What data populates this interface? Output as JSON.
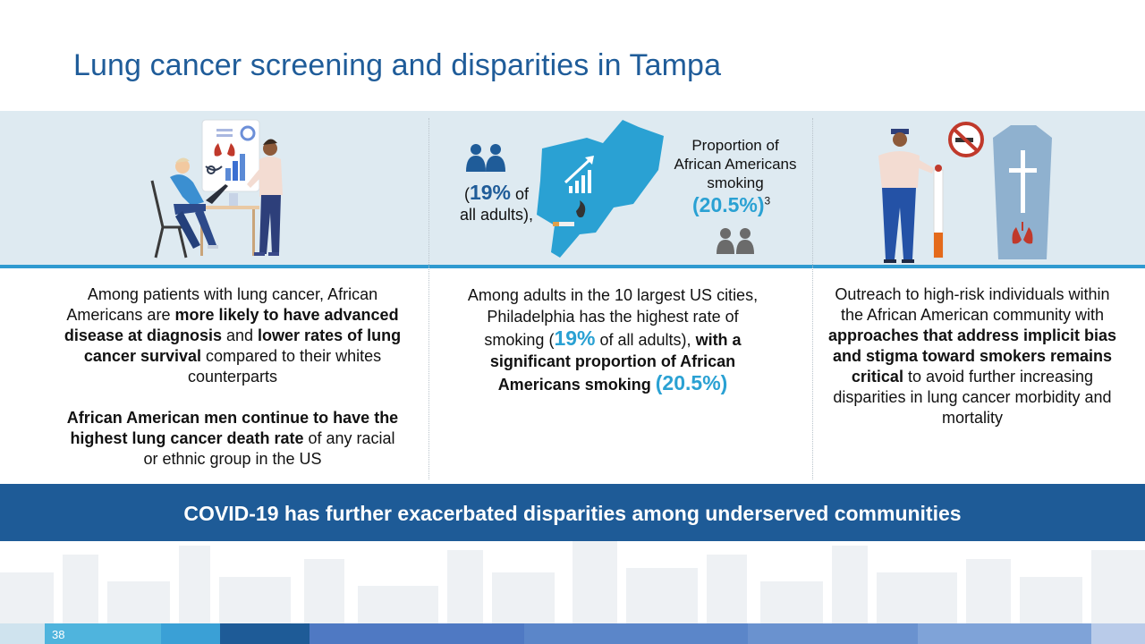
{
  "slide": {
    "title": "Lung cancer screening and disparities in Tampa",
    "page_number": "38"
  },
  "colors": {
    "title_blue": "#1f5c99",
    "accent_cyan": "#2aa1d3",
    "band_bg": "#deeaf1",
    "banner_bg": "#1e5b97"
  },
  "panel1": {
    "para1": {
      "t1": "Among patients with lung cancer, African Americans are ",
      "b1": "more likely to have advanced disease at diagnosis",
      "t2": " and ",
      "b2": "lower rates of lung cancer survival",
      "t3": " compared to their whites counterparts"
    },
    "para2": {
      "b1": "African American men continue to have the highest lung cancer death rate",
      "t1": " of any racial or ethnic group in the US"
    }
  },
  "panel2": {
    "graphic": {
      "open_paren": "(",
      "pct_adults": "19%",
      "of": " of",
      "all_adults": "all adults),",
      "prop_label": "Proportion of African Americans smoking",
      "pct_aa": "(20.5%)",
      "footnote": "3"
    },
    "text": {
      "t1": "Among adults in the 10 largest US cities, Philadelphia has the highest rate of smoking (",
      "h1": "19%",
      "t2": " of all adults), ",
      "b1": "with a significant proportion of African Americans smoking",
      "h2": "(20.5%)"
    }
  },
  "panel3": {
    "text": {
      "t1": "Outreach to high-risk individuals within the African American community with ",
      "b1": "approaches that address implicit bias and stigma toward smokers remains critical",
      "t2": " to avoid further increasing disparities in lung cancer morbidity and mortality"
    }
  },
  "banner": {
    "text": "COVID-19 has further exacerbated disparities among underserved communities"
  },
  "icons": [
    "doctor-patient-illustration",
    "people-icon",
    "philadelphia-map-icon",
    "no-smoking-icon",
    "smoker-figure",
    "cigarette-icon",
    "coffin-icon",
    "lungs-icon"
  ]
}
